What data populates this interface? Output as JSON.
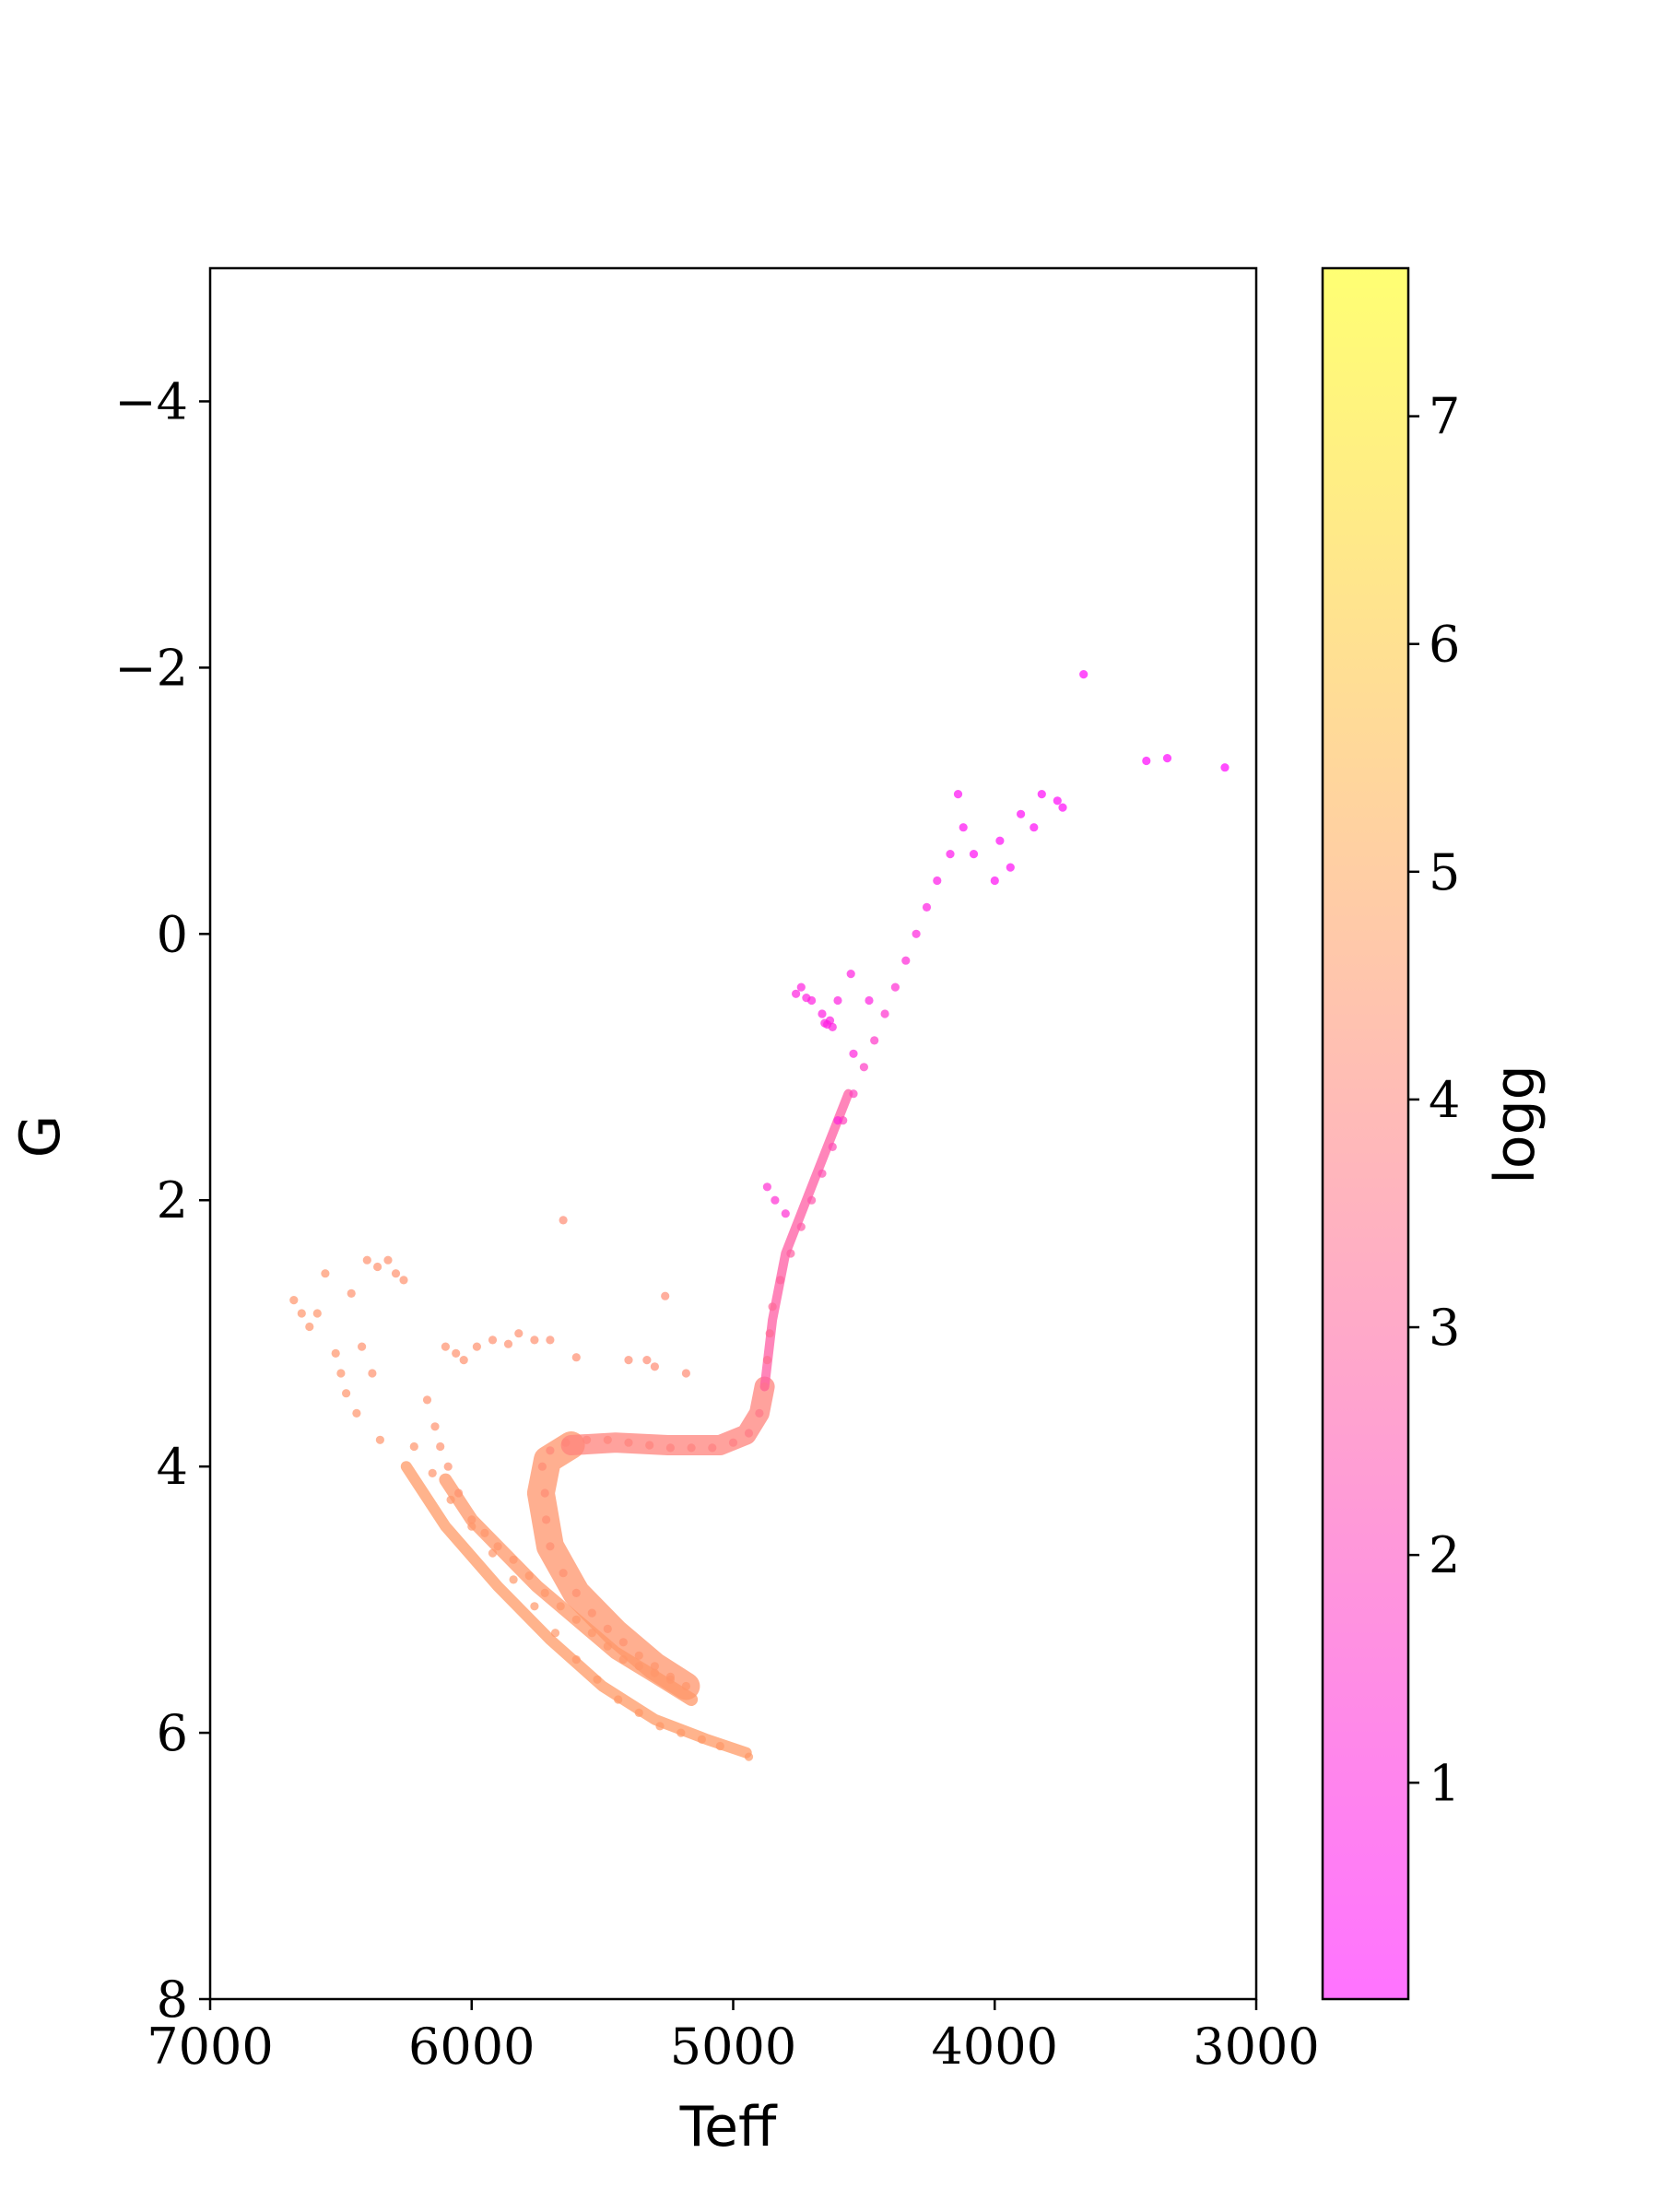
{
  "chart_data": {
    "type": "scatter",
    "xlabel": "Teff",
    "ylabel": "G",
    "xlim": [
      7000,
      3000
    ],
    "ylim": [
      8,
      -5
    ],
    "x_ticks": [
      "7000",
      "6000",
      "5000",
      "4000",
      "3000"
    ],
    "y_ticks": [
      "−4",
      "−2",
      "0",
      "2",
      "4",
      "6",
      "8"
    ],
    "x_tick_values": [
      7000,
      6000,
      5000,
      4000,
      3000
    ],
    "y_tick_values": [
      -4,
      -2,
      0,
      2,
      4,
      6,
      8
    ],
    "grid": false,
    "colorbar": {
      "label": "logg",
      "range": [
        0.05,
        7.65
      ],
      "ticks": [
        "1",
        "2",
        "3",
        "4",
        "5",
        "6",
        "7"
      ],
      "tick_values": [
        1,
        2,
        3,
        4,
        5,
        6,
        7
      ],
      "colormap": "spring",
      "alpha": 0.55,
      "colors": {
        "low": "#ff00ff",
        "high": "#ffff00"
      }
    },
    "series": [
      {
        "points": [
          [
            6680,
            2.75,
            4.45
          ],
          [
            6650,
            2.85,
            4.45
          ],
          [
            6620,
            2.95,
            4.45
          ],
          [
            6590,
            2.85,
            4.45
          ],
          [
            6560,
            2.55,
            4.45
          ],
          [
            6520,
            3.15,
            4.45
          ],
          [
            6500,
            3.3,
            4.45
          ],
          [
            6480,
            3.45,
            4.45
          ],
          [
            6460,
            2.7,
            4.4
          ],
          [
            6440,
            3.6,
            4.45
          ],
          [
            6420,
            3.1,
            4.4
          ],
          [
            6400,
            2.45,
            4.4
          ],
          [
            6380,
            3.3,
            4.4
          ],
          [
            6360,
            2.5,
            4.4
          ],
          [
            6350,
            3.8,
            4.45
          ],
          [
            6320,
            2.45,
            4.4
          ],
          [
            6290,
            2.55,
            4.4
          ],
          [
            6260,
            2.6,
            4.4
          ],
          [
            6220,
            3.85,
            4.45
          ],
          [
            6150,
            4.05,
            4.45
          ],
          [
            6080,
            4.25,
            4.5
          ],
          [
            6000,
            4.45,
            4.5
          ],
          [
            5920,
            4.65,
            4.5
          ],
          [
            5840,
            4.85,
            4.55
          ],
          [
            5760,
            5.05,
            4.55
          ],
          [
            5680,
            5.25,
            4.55
          ],
          [
            5600,
            5.45,
            4.55
          ],
          [
            5520,
            5.6,
            4.6
          ],
          [
            5440,
            5.75,
            4.6
          ],
          [
            5360,
            5.85,
            4.6
          ],
          [
            5280,
            5.95,
            4.6
          ],
          [
            5200,
            6.0,
            4.6
          ],
          [
            5120,
            6.05,
            4.6
          ],
          [
            5050,
            6.1,
            4.6
          ],
          [
            4940,
            6.18,
            4.6
          ],
          [
            6100,
            3.1,
            4.4
          ],
          [
            6060,
            3.15,
            4.4
          ],
          [
            6030,
            3.2,
            4.4
          ],
          [
            5980,
            3.1,
            4.4
          ],
          [
            5920,
            3.05,
            4.35
          ],
          [
            5860,
            3.08,
            4.35
          ],
          [
            5820,
            3.0,
            4.35
          ],
          [
            5760,
            3.05,
            4.35
          ],
          [
            5700,
            3.05,
            4.3
          ],
          [
            5600,
            3.18,
            4.3
          ],
          [
            5400,
            3.2,
            4.25
          ],
          [
            5330,
            3.2,
            4.2
          ],
          [
            5300,
            3.25,
            4.2
          ],
          [
            5180,
            3.3,
            4.2
          ],
          [
            5260,
            2.72,
            4.2
          ],
          [
            5650,
            2.15,
            4.2
          ],
          [
            6170,
            3.5,
            4.4
          ],
          [
            6140,
            3.7,
            4.4
          ],
          [
            6120,
            3.85,
            4.4
          ],
          [
            6090,
            4.0,
            4.4
          ],
          [
            6050,
            4.2,
            4.4
          ],
          [
            6000,
            4.4,
            4.45
          ],
          [
            5950,
            4.5,
            4.45
          ],
          [
            5900,
            4.6,
            4.45
          ],
          [
            5840,
            4.7,
            4.45
          ],
          [
            5780,
            4.82,
            4.5
          ],
          [
            5720,
            4.95,
            4.5
          ],
          [
            5660,
            5.05,
            4.5
          ],
          [
            5600,
            5.15,
            4.5
          ],
          [
            5540,
            5.25,
            4.5
          ],
          [
            5480,
            5.35,
            4.5
          ],
          [
            5420,
            5.45,
            4.5
          ],
          [
            5360,
            5.5,
            4.5
          ],
          [
            5300,
            5.55,
            4.5
          ],
          [
            5240,
            5.6,
            4.5
          ],
          [
            5180,
            5.65,
            4.5
          ],
          [
            5730,
            4.0,
            4.2
          ],
          [
            5720,
            4.2,
            4.2
          ],
          [
            5715,
            4.4,
            4.25
          ],
          [
            5700,
            4.6,
            4.3
          ],
          [
            5650,
            4.8,
            4.35
          ],
          [
            5600,
            4.95,
            4.35
          ],
          [
            5540,
            5.1,
            4.4
          ],
          [
            5480,
            5.22,
            4.4
          ],
          [
            5420,
            5.32,
            4.4
          ],
          [
            5360,
            5.42,
            4.45
          ],
          [
            5300,
            5.5,
            4.45
          ],
          [
            5240,
            5.58,
            4.45
          ],
          [
            5700,
            3.88,
            4.1
          ],
          [
            5640,
            3.82,
            4.05
          ],
          [
            5560,
            3.8,
            4.0
          ],
          [
            5480,
            3.8,
            4.0
          ],
          [
            5400,
            3.82,
            3.95
          ],
          [
            5320,
            3.84,
            3.95
          ],
          [
            5240,
            3.86,
            3.9
          ],
          [
            5160,
            3.86,
            3.9
          ],
          [
            5080,
            3.86,
            3.85
          ],
          [
            5000,
            3.82,
            3.8
          ],
          [
            4940,
            3.75,
            3.7
          ],
          [
            4900,
            3.6,
            3.6
          ],
          [
            4880,
            3.4,
            3.45
          ],
          [
            4870,
            3.2,
            3.35
          ],
          [
            4860,
            3.0,
            3.25
          ],
          [
            4850,
            2.8,
            3.15
          ],
          [
            4820,
            2.6,
            3.0
          ],
          [
            4780,
            2.4,
            2.85
          ],
          [
            4740,
            2.2,
            2.7
          ],
          [
            4700,
            2.0,
            2.55
          ],
          [
            4660,
            1.8,
            2.4
          ],
          [
            4620,
            1.6,
            2.25
          ],
          [
            4580,
            1.4,
            2.1
          ],
          [
            4540,
            1.2,
            1.95
          ],
          [
            4500,
            1.0,
            1.8
          ],
          [
            4460,
            0.8,
            1.65
          ],
          [
            4420,
            0.6,
            1.5
          ],
          [
            4380,
            0.4,
            1.35
          ],
          [
            4340,
            0.2,
            1.2
          ],
          [
            4300,
            0.0,
            1.05
          ],
          [
            4260,
            -0.2,
            0.9
          ],
          [
            4220,
            -0.4,
            0.75
          ],
          [
            4170,
            -0.6,
            0.6
          ],
          [
            4120,
            -0.8,
            0.45
          ],
          [
            4650,
            0.67,
            0.95
          ],
          [
            4640,
            0.68,
            0.95
          ],
          [
            4630,
            0.65,
            0.95
          ],
          [
            4620,
            0.7,
            0.95
          ],
          [
            4660,
            0.6,
            0.95
          ],
          [
            4700,
            0.5,
            1.0
          ],
          [
            4740,
            0.4,
            1.0
          ],
          [
            4760,
            0.45,
            1.0
          ],
          [
            4720,
            0.48,
            1.0
          ],
          [
            4600,
            0.5,
            1.0
          ],
          [
            4550,
            0.3,
            1.0
          ],
          [
            4480,
            0.5,
            1.0
          ],
          [
            4540,
            0.9,
            1.05
          ],
          [
            4600,
            1.4,
            1.1
          ],
          [
            4840,
            2.0,
            1.35
          ],
          [
            4800,
            2.1,
            1.35
          ],
          [
            4870,
            1.9,
            1.4
          ],
          [
            4000,
            -0.4,
            0.4
          ],
          [
            3980,
            -0.7,
            0.35
          ],
          [
            3940,
            -0.5,
            0.35
          ],
          [
            3900,
            -0.9,
            0.3
          ],
          [
            3850,
            -0.8,
            0.3
          ],
          [
            3820,
            -1.05,
            0.25
          ],
          [
            3760,
            -1.0,
            0.25
          ],
          [
            3740,
            -0.95,
            0.25
          ],
          [
            4140,
            -1.05,
            0.4
          ],
          [
            3660,
            -1.95,
            0.2
          ],
          [
            3420,
            -1.3,
            0.15
          ],
          [
            3340,
            -1.32,
            0.15
          ],
          [
            3120,
            -1.25,
            0.1
          ],
          [
            4080,
            -0.6,
            0.4
          ]
        ]
      }
    ]
  }
}
